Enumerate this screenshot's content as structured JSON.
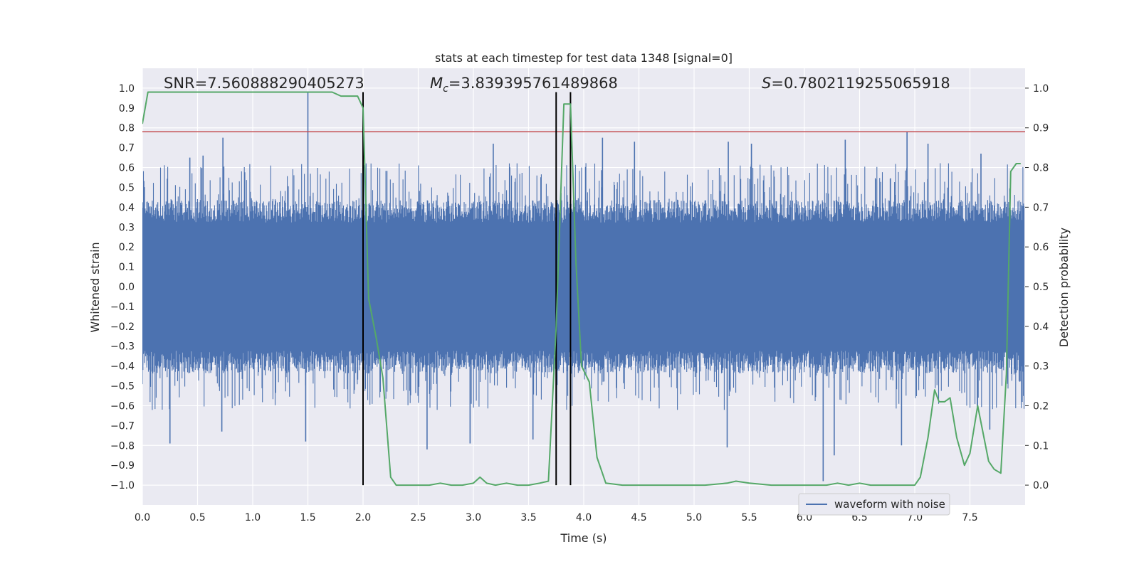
{
  "chart_data": {
    "type": "line",
    "title": "stats at each timestep for test data 1348 [signal=0]",
    "annotations": {
      "snr": "SNR=7.560888290405273",
      "mc_symbol": "M",
      "mc_subscript": "c",
      "mc_value": "=3.839395761489868",
      "s_symbol": "S",
      "s_value": "=0.7802119255065918"
    },
    "xlabel": "Time (s)",
    "ylabel_left": "Whitened strain",
    "ylabel_right": "Detection probability",
    "xlim": [
      0.0,
      8.0
    ],
    "ylim_left": [
      -1.1,
      1.1
    ],
    "ylim_right": [
      -0.05,
      1.05
    ],
    "x_ticks": [
      "0.0",
      "0.5",
      "1.0",
      "1.5",
      "2.0",
      "2.5",
      "3.0",
      "3.5",
      "4.0",
      "4.5",
      "5.0",
      "5.5",
      "6.0",
      "6.5",
      "7.0",
      "7.5"
    ],
    "y_left_ticks": [
      "1.0",
      "0.9",
      "0.8",
      "0.7",
      "0.6",
      "0.5",
      "0.4",
      "0.3",
      "0.2",
      "0.1",
      "0.0",
      "−0.1",
      "−0.2",
      "−0.3",
      "−0.4",
      "−0.5",
      "−0.6",
      "−0.7",
      "−0.8",
      "−0.9",
      "−1.0"
    ],
    "y_right_ticks": [
      "1.0",
      "0.9",
      "0.8",
      "0.7",
      "0.6",
      "0.5",
      "0.4",
      "0.3",
      "0.2",
      "0.1",
      "0.0"
    ],
    "grid": true,
    "legend_position": "lower-right",
    "colors": {
      "background": "#eaeaf2",
      "grid": "#ffffff",
      "waveform": "#4c72b0",
      "probability": "#55a868",
      "threshold": "#c44e52",
      "marker": "#000000"
    },
    "series": [
      {
        "name": "waveform with noise",
        "kind": "noise-band",
        "axis": "left",
        "dense_band": [
          -0.38,
          0.38
        ],
        "typical_spike_range": [
          -0.6,
          0.6
        ],
        "spikes": [
          {
            "x": 1.5,
            "y": 0.98
          },
          {
            "x": 0.55,
            "y": 0.66
          },
          {
            "x": 0.73,
            "y": 0.75
          },
          {
            "x": 0.43,
            "y": 0.65
          },
          {
            "x": 0.25,
            "y": -0.79
          },
          {
            "x": 1.48,
            "y": -0.78
          },
          {
            "x": 2.58,
            "y": -0.82
          },
          {
            "x": 2.97,
            "y": -0.79
          },
          {
            "x": 3.54,
            "y": -0.77
          },
          {
            "x": 4.17,
            "y": 0.75
          },
          {
            "x": 4.46,
            "y": 0.73
          },
          {
            "x": 5.31,
            "y": 0.73
          },
          {
            "x": 5.3,
            "y": -0.81
          },
          {
            "x": 6.17,
            "y": -0.98
          },
          {
            "x": 6.27,
            "y": -0.85
          },
          {
            "x": 6.93,
            "y": 0.78
          },
          {
            "x": 6.88,
            "y": -0.8
          },
          {
            "x": 7.68,
            "y": -0.72
          },
          {
            "x": 7.6,
            "y": 0.67
          },
          {
            "x": 5.52,
            "y": 0.72
          },
          {
            "x": 6.37,
            "y": 0.74
          },
          {
            "x": 7.12,
            "y": 0.72
          },
          {
            "x": 3.18,
            "y": 0.72
          },
          {
            "x": 0.72,
            "y": -0.73
          }
        ]
      },
      {
        "name": "",
        "kind": "probability",
        "axis": "right",
        "x": [
          0.0,
          0.05,
          0.2,
          0.4,
          0.6,
          0.8,
          1.0,
          1.2,
          1.4,
          1.6,
          1.72,
          1.8,
          1.95,
          2.0,
          2.05,
          2.12,
          2.18,
          2.25,
          2.3,
          2.45,
          2.6,
          2.7,
          2.8,
          2.9,
          3.0,
          3.06,
          3.12,
          3.2,
          3.3,
          3.4,
          3.5,
          3.6,
          3.68,
          3.75,
          3.82,
          3.88,
          3.93,
          3.98,
          4.05,
          4.12,
          4.2,
          4.35,
          4.5,
          4.7,
          4.9,
          5.1,
          5.3,
          5.38,
          5.5,
          5.7,
          5.9,
          6.1,
          6.2,
          6.3,
          6.4,
          6.5,
          6.6,
          6.8,
          7.0,
          7.05,
          7.12,
          7.18,
          7.22,
          7.27,
          7.32,
          7.38,
          7.45,
          7.5,
          7.57,
          7.62,
          7.67,
          7.72,
          7.78,
          7.83,
          7.87,
          7.92,
          7.96
        ],
        "y": [
          0.91,
          0.99,
          0.99,
          0.99,
          0.99,
          0.99,
          0.99,
          0.99,
          0.99,
          0.99,
          0.99,
          0.98,
          0.98,
          0.95,
          0.47,
          0.37,
          0.27,
          0.02,
          0.0,
          0.0,
          0.0,
          0.005,
          0.0,
          0.0,
          0.005,
          0.02,
          0.005,
          0.0,
          0.005,
          0.0,
          0.0,
          0.005,
          0.01,
          0.4,
          0.96,
          0.96,
          0.56,
          0.3,
          0.26,
          0.07,
          0.005,
          0.0,
          0.0,
          0.0,
          0.0,
          0.0,
          0.005,
          0.01,
          0.005,
          0.0,
          0.0,
          0.0,
          0.0,
          0.005,
          0.0,
          0.005,
          0.0,
          0.0,
          0.0,
          0.02,
          0.12,
          0.24,
          0.21,
          0.21,
          0.22,
          0.12,
          0.05,
          0.08,
          0.2,
          0.13,
          0.06,
          0.04,
          0.03,
          0.28,
          0.79,
          0.81,
          0.81
        ]
      },
      {
        "name": "",
        "kind": "threshold",
        "axis": "left",
        "y": 0.78
      },
      {
        "name": "",
        "kind": "vertical-markers",
        "axis": "left",
        "x": [
          2.0,
          3.75,
          3.88
        ],
        "y_range": [
          -1.0,
          0.98
        ]
      }
    ]
  }
}
